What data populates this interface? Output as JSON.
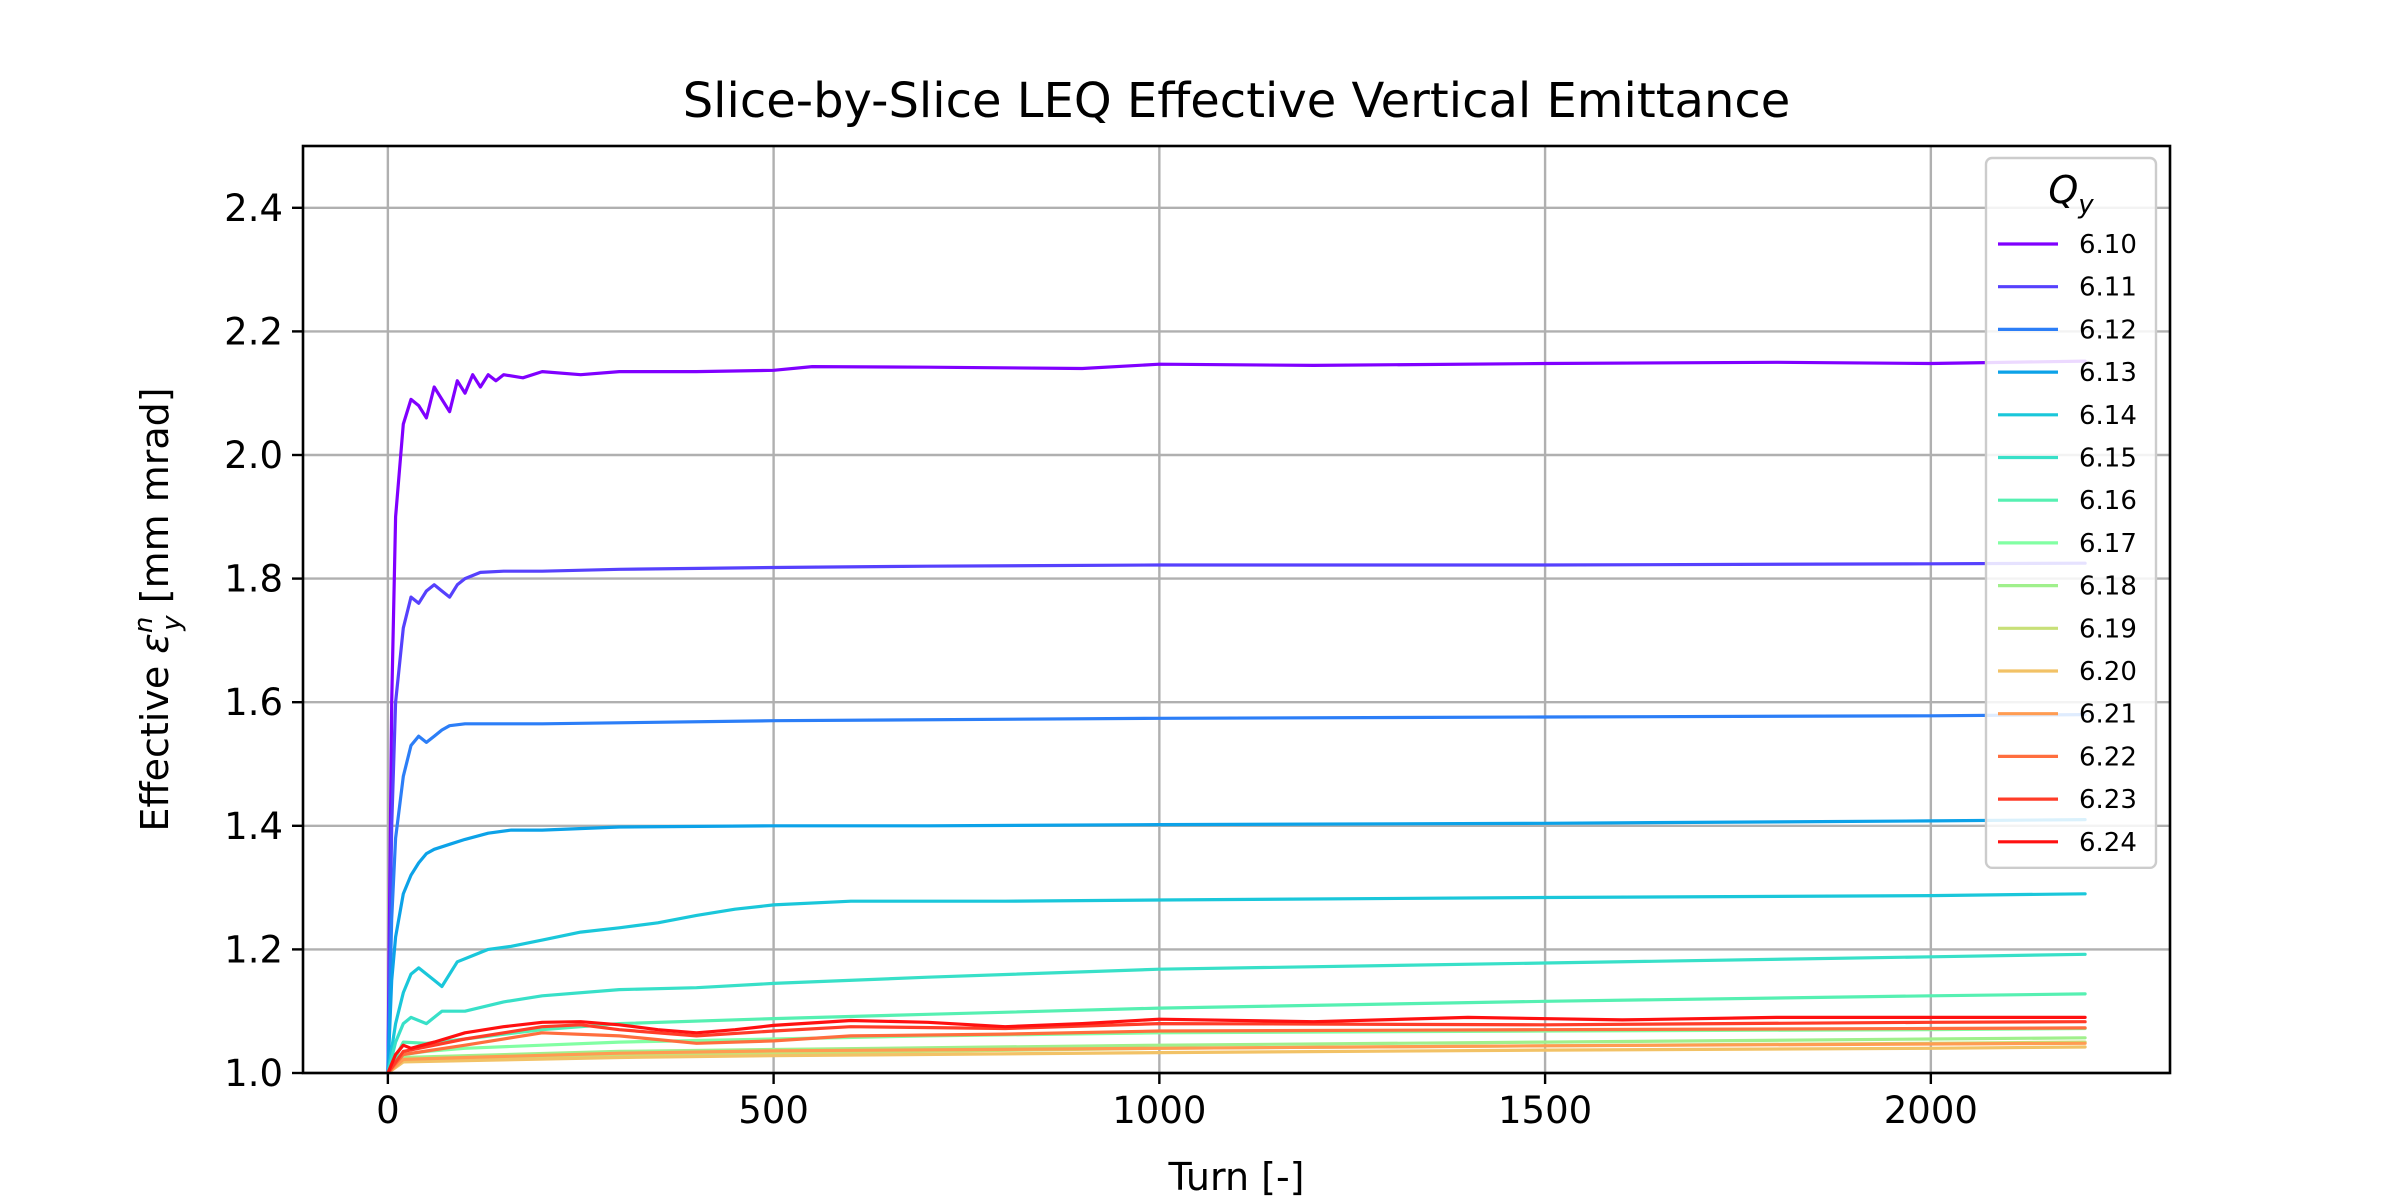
{
  "chart_data": {
    "type": "line",
    "title": "Slice-by-Slice LEQ Effective Vertical Emittance",
    "xlabel": "Turn [-]",
    "ylabel_prefix": "Effective ",
    "ylabel_symbol": "ε",
    "ylabel_sub": "y",
    "ylabel_sup": "n",
    "ylabel_suffix": " [mm mrad]",
    "xlim": [
      -110,
      2310
    ],
    "ylim": [
      1.0,
      2.5
    ],
    "xticks": [
      0,
      500,
      1000,
      1500,
      2000
    ],
    "yticks": [
      1.0,
      1.2,
      1.4,
      1.6,
      1.8,
      2.0,
      2.2,
      2.4
    ],
    "ytick_labels": [
      "1.0",
      "1.2",
      "1.4",
      "1.6",
      "1.8",
      "2.0",
      "2.2",
      "2.4"
    ],
    "grid": true,
    "legend": {
      "title_symbol": "Q",
      "title_sub": "y",
      "position": "top-right"
    },
    "series": [
      {
        "name": "6.10",
        "color": "#8000ff",
        "points": [
          [
            0,
            1.0
          ],
          [
            5,
            1.6
          ],
          [
            10,
            1.9
          ],
          [
            20,
            2.05
          ],
          [
            30,
            2.09
          ],
          [
            40,
            2.08
          ],
          [
            50,
            2.06
          ],
          [
            60,
            2.11
          ],
          [
            70,
            2.09
          ],
          [
            80,
            2.07
          ],
          [
            90,
            2.12
          ],
          [
            100,
            2.1
          ],
          [
            110,
            2.13
          ],
          [
            120,
            2.11
          ],
          [
            130,
            2.13
          ],
          [
            140,
            2.12
          ],
          [
            150,
            2.13
          ],
          [
            175,
            2.125
          ],
          [
            200,
            2.135
          ],
          [
            250,
            2.13
          ],
          [
            300,
            2.135
          ],
          [
            400,
            2.135
          ],
          [
            500,
            2.137
          ],
          [
            550,
            2.143
          ],
          [
            700,
            2.142
          ],
          [
            900,
            2.14
          ],
          [
            1000,
            2.147
          ],
          [
            1200,
            2.145
          ],
          [
            1500,
            2.148
          ],
          [
            1800,
            2.15
          ],
          [
            2000,
            2.148
          ],
          [
            2200,
            2.152
          ]
        ]
      },
      {
        "name": "6.11",
        "color": "#5641fd",
        "points": [
          [
            0,
            1.0
          ],
          [
            5,
            1.4
          ],
          [
            10,
            1.6
          ],
          [
            20,
            1.72
          ],
          [
            30,
            1.77
          ],
          [
            40,
            1.76
          ],
          [
            50,
            1.78
          ],
          [
            60,
            1.79
          ],
          [
            70,
            1.78
          ],
          [
            80,
            1.77
          ],
          [
            90,
            1.79
          ],
          [
            100,
            1.8
          ],
          [
            120,
            1.81
          ],
          [
            150,
            1.812
          ],
          [
            200,
            1.812
          ],
          [
            300,
            1.815
          ],
          [
            500,
            1.818
          ],
          [
            700,
            1.82
          ],
          [
            1000,
            1.822
          ],
          [
            1500,
            1.822
          ],
          [
            2000,
            1.824
          ],
          [
            2200,
            1.825
          ]
        ]
      },
      {
        "name": "6.12",
        "color": "#2c7ef7",
        "points": [
          [
            0,
            1.0
          ],
          [
            5,
            1.25
          ],
          [
            10,
            1.38
          ],
          [
            20,
            1.48
          ],
          [
            30,
            1.53
          ],
          [
            40,
            1.545
          ],
          [
            50,
            1.535
          ],
          [
            60,
            1.545
          ],
          [
            70,
            1.555
          ],
          [
            80,
            1.562
          ],
          [
            100,
            1.565
          ],
          [
            200,
            1.565
          ],
          [
            500,
            1.57
          ],
          [
            1000,
            1.574
          ],
          [
            1500,
            1.576
          ],
          [
            2000,
            1.578
          ],
          [
            2200,
            1.58
          ]
        ]
      },
      {
        "name": "6.13",
        "color": "#0ca2e8",
        "points": [
          [
            0,
            1.0
          ],
          [
            5,
            1.15
          ],
          [
            10,
            1.22
          ],
          [
            20,
            1.29
          ],
          [
            30,
            1.32
          ],
          [
            40,
            1.34
          ],
          [
            50,
            1.355
          ],
          [
            60,
            1.362
          ],
          [
            80,
            1.37
          ],
          [
            100,
            1.378
          ],
          [
            130,
            1.388
          ],
          [
            160,
            1.393
          ],
          [
            200,
            1.393
          ],
          [
            300,
            1.398
          ],
          [
            500,
            1.4
          ],
          [
            700,
            1.4
          ],
          [
            1000,
            1.402
          ],
          [
            1500,
            1.404
          ],
          [
            2000,
            1.408
          ],
          [
            2200,
            1.41
          ]
        ]
      },
      {
        "name": "6.14",
        "color": "#1ac7da",
        "points": [
          [
            0,
            1.0
          ],
          [
            10,
            1.08
          ],
          [
            20,
            1.13
          ],
          [
            30,
            1.16
          ],
          [
            40,
            1.17
          ],
          [
            60,
            1.15
          ],
          [
            70,
            1.14
          ],
          [
            90,
            1.18
          ],
          [
            110,
            1.19
          ],
          [
            130,
            1.2
          ],
          [
            160,
            1.205
          ],
          [
            200,
            1.215
          ],
          [
            250,
            1.228
          ],
          [
            300,
            1.235
          ],
          [
            350,
            1.243
          ],
          [
            400,
            1.255
          ],
          [
            450,
            1.265
          ],
          [
            500,
            1.272
          ],
          [
            600,
            1.278
          ],
          [
            800,
            1.278
          ],
          [
            1000,
            1.28
          ],
          [
            1500,
            1.284
          ],
          [
            2000,
            1.287
          ],
          [
            2200,
            1.29
          ]
        ]
      },
      {
        "name": "6.15",
        "color": "#38e0c8",
        "points": [
          [
            0,
            1.0
          ],
          [
            10,
            1.05
          ],
          [
            20,
            1.08
          ],
          [
            30,
            1.09
          ],
          [
            50,
            1.08
          ],
          [
            70,
            1.1
          ],
          [
            100,
            1.1
          ],
          [
            150,
            1.115
          ],
          [
            200,
            1.125
          ],
          [
            300,
            1.135
          ],
          [
            400,
            1.138
          ],
          [
            500,
            1.145
          ],
          [
            700,
            1.155
          ],
          [
            1000,
            1.168
          ],
          [
            1500,
            1.178
          ],
          [
            2000,
            1.188
          ],
          [
            2200,
            1.192
          ]
        ]
      },
      {
        "name": "6.16",
        "color": "#56f0b2",
        "points": [
          [
            0,
            1.0
          ],
          [
            20,
            1.05
          ],
          [
            50,
            1.048
          ],
          [
            100,
            1.055
          ],
          [
            200,
            1.07
          ],
          [
            300,
            1.08
          ],
          [
            500,
            1.088
          ],
          [
            700,
            1.095
          ],
          [
            1000,
            1.105
          ],
          [
            1500,
            1.116
          ],
          [
            2000,
            1.125
          ],
          [
            2200,
            1.128
          ]
        ]
      },
      {
        "name": "6.17",
        "color": "#82ffa3",
        "points": [
          [
            0,
            1.0
          ],
          [
            20,
            1.03
          ],
          [
            50,
            1.035
          ],
          [
            100,
            1.04
          ],
          [
            200,
            1.045
          ],
          [
            300,
            1.05
          ],
          [
            500,
            1.055
          ],
          [
            700,
            1.06
          ],
          [
            1000,
            1.065
          ],
          [
            1500,
            1.068
          ],
          [
            2000,
            1.07
          ],
          [
            2200,
            1.072
          ]
        ]
      },
      {
        "name": "6.18",
        "color": "#a0f08c",
        "points": [
          [
            0,
            1.0
          ],
          [
            20,
            1.025
          ],
          [
            100,
            1.028
          ],
          [
            300,
            1.035
          ],
          [
            500,
            1.038
          ],
          [
            1000,
            1.045
          ],
          [
            1500,
            1.05
          ],
          [
            2000,
            1.055
          ],
          [
            2200,
            1.057
          ]
        ]
      },
      {
        "name": "6.19",
        "color": "#c8e078",
        "points": [
          [
            0,
            1.0
          ],
          [
            20,
            1.02
          ],
          [
            100,
            1.022
          ],
          [
            300,
            1.028
          ],
          [
            500,
            1.032
          ],
          [
            1000,
            1.04
          ],
          [
            1500,
            1.044
          ],
          [
            2000,
            1.048
          ],
          [
            2200,
            1.05
          ]
        ]
      },
      {
        "name": "6.20",
        "color": "#f2c266",
        "points": [
          [
            0,
            1.0
          ],
          [
            20,
            1.018
          ],
          [
            100,
            1.02
          ],
          [
            300,
            1.025
          ],
          [
            500,
            1.028
          ],
          [
            1000,
            1.033
          ],
          [
            1500,
            1.037
          ],
          [
            2000,
            1.04
          ],
          [
            2200,
            1.042
          ]
        ]
      },
      {
        "name": "6.21",
        "color": "#ff9c52",
        "points": [
          [
            0,
            1.0
          ],
          [
            20,
            1.022
          ],
          [
            100,
            1.025
          ],
          [
            300,
            1.032
          ],
          [
            500,
            1.036
          ],
          [
            1000,
            1.04
          ],
          [
            1500,
            1.044
          ],
          [
            2000,
            1.047
          ],
          [
            2200,
            1.048
          ]
        ]
      },
      {
        "name": "6.22",
        "color": "#ff6e3e",
        "points": [
          [
            0,
            1.0
          ],
          [
            20,
            1.03
          ],
          [
            100,
            1.045
          ],
          [
            200,
            1.065
          ],
          [
            300,
            1.06
          ],
          [
            400,
            1.048
          ],
          [
            500,
            1.052
          ],
          [
            600,
            1.06
          ],
          [
            800,
            1.063
          ],
          [
            1000,
            1.068
          ],
          [
            1500,
            1.07
          ],
          [
            2000,
            1.072
          ],
          [
            2200,
            1.073
          ]
        ]
      },
      {
        "name": "6.23",
        "color": "#ff3c28",
        "points": [
          [
            0,
            1.0
          ],
          [
            20,
            1.035
          ],
          [
            100,
            1.055
          ],
          [
            200,
            1.075
          ],
          [
            250,
            1.078
          ],
          [
            300,
            1.07
          ],
          [
            400,
            1.06
          ],
          [
            500,
            1.068
          ],
          [
            600,
            1.075
          ],
          [
            800,
            1.072
          ],
          [
            1000,
            1.08
          ],
          [
            1500,
            1.078
          ],
          [
            2000,
            1.082
          ],
          [
            2200,
            1.083
          ]
        ]
      },
      {
        "name": "6.24",
        "color": "#ff1010",
        "points": [
          [
            0,
            1.0
          ],
          [
            10,
            1.03
          ],
          [
            20,
            1.045
          ],
          [
            30,
            1.04
          ],
          [
            60,
            1.05
          ],
          [
            100,
            1.065
          ],
          [
            150,
            1.075
          ],
          [
            200,
            1.082
          ],
          [
            250,
            1.083
          ],
          [
            300,
            1.078
          ],
          [
            350,
            1.07
          ],
          [
            400,
            1.065
          ],
          [
            450,
            1.07
          ],
          [
            500,
            1.077
          ],
          [
            600,
            1.085
          ],
          [
            700,
            1.082
          ],
          [
            800,
            1.075
          ],
          [
            900,
            1.08
          ],
          [
            1000,
            1.087
          ],
          [
            1200,
            1.083
          ],
          [
            1400,
            1.09
          ],
          [
            1600,
            1.086
          ],
          [
            1800,
            1.09
          ],
          [
            2000,
            1.09
          ],
          [
            2200,
            1.09
          ]
        ]
      }
    ]
  }
}
